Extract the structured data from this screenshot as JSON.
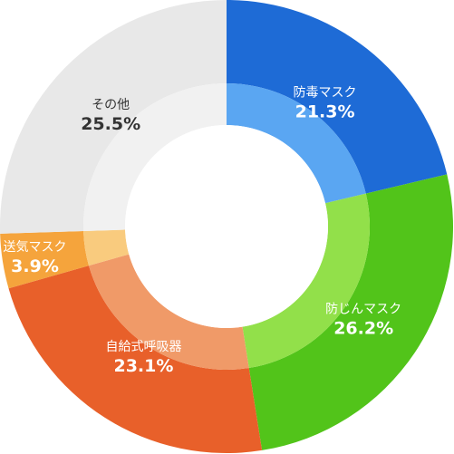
{
  "chart_data": {
    "type": "pie",
    "style": "donut",
    "title": "",
    "start_angle_deg": 0,
    "direction": "clockwise",
    "slices": [
      {
        "label": "防毒マスク",
        "value": 21.3,
        "value_text": "21.3%",
        "color": "#1e6bd6",
        "inner_color": "#5aa6f2",
        "text_color": "#ffffff"
      },
      {
        "label": "防じんマスク",
        "value": 26.2,
        "value_text": "26.2%",
        "color": "#52c41a",
        "inner_color": "#92e04a",
        "text_color": "#ffffff"
      },
      {
        "label": "自給式呼吸器",
        "value": 23.1,
        "value_text": "23.1%",
        "color": "#e8602a",
        "inner_color": "#f09a68",
        "text_color": "#ffffff"
      },
      {
        "label": "送気マスク",
        "value": 3.9,
        "value_text": "3.9%",
        "color": "#f5a43c",
        "inner_color": "#f9cb7e",
        "text_color": "#ffffff"
      },
      {
        "label": "その他",
        "value": 25.5,
        "value_text": "25.5%",
        "color": "#e8e8e8",
        "inner_color": "#f1f1f1",
        "text_color": "#333333"
      }
    ]
  }
}
